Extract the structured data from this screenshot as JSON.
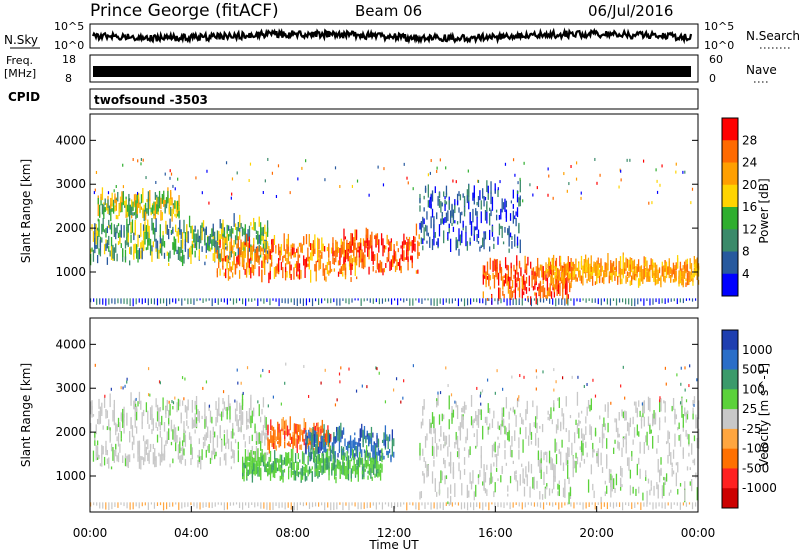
{
  "header": {
    "station": "Prince George (fitACF)",
    "beam": "Beam 06",
    "date": "06/Jul/2016"
  },
  "panels": {
    "nsky": {
      "left_label": "N.Sky",
      "right_label": "N.Search",
      "left_top": "10^5",
      "left_bottom": "10^0",
      "right_top": "10^5",
      "right_bottom": "10^0"
    },
    "freq": {
      "left_label_1": "Freq.",
      "left_label_2": "[MHz]",
      "right_label": "Nave",
      "left_top": "18",
      "left_bottom": "8",
      "right_top": "60",
      "right_bottom": "0"
    },
    "cpid": {
      "label": "CPID",
      "value": "twofsound -3503"
    }
  },
  "colorbars": {
    "power": {
      "label": "Power [dB]",
      "ticks": [
        "28",
        "24",
        "20",
        "16",
        "12",
        "8",
        "4"
      ],
      "colors": [
        "#ff0000",
        "#ff6a00",
        "#ff9f00",
        "#ffd400",
        "#2fae2f",
        "#3a8a6a",
        "#27599e",
        "#0000ff"
      ]
    },
    "velocity": {
      "label": "Velocity [m s^-1]",
      "ticks": [
        "1000",
        "500",
        "100",
        "25",
        "-25",
        "-100",
        "-500",
        "-1000"
      ],
      "colors": [
        "#1f3fb0",
        "#2a6ec8",
        "#3b9a6b",
        "#5bd23a",
        "#c8c8c8",
        "#ffa640",
        "#ff7000",
        "#ff2020",
        "#cc0000"
      ]
    }
  },
  "chart_data": [
    {
      "type": "heatmap",
      "title": "",
      "ylabel": "Slant Range [km]",
      "ylim": [
        180,
        4600
      ],
      "yticks": [
        1000,
        2000,
        3000,
        4000
      ],
      "xlabel": "Time UT",
      "xlim": [
        "00:00",
        "24:00"
      ],
      "xticks": [
        "00:00",
        "04:00",
        "08:00",
        "12:00",
        "16:00",
        "20:00",
        "00:00"
      ],
      "colorbar": "Power [dB]",
      "echo_regions": [
        {
          "t0": 0.3,
          "t1": 3.5,
          "r0": 2200,
          "r1": 2600,
          "level": "12-20"
        },
        {
          "t0": 0.0,
          "t1": 7.0,
          "r0": 1200,
          "r1": 2000,
          "level": "8-16"
        },
        {
          "t0": 5.0,
          "t1": 10.5,
          "r0": 800,
          "r1": 1600,
          "level": "16-28"
        },
        {
          "t0": 10.0,
          "t1": 13.0,
          "r0": 900,
          "r1": 1800,
          "level": "20-28"
        },
        {
          "t0": 15.5,
          "t1": 19.0,
          "r0": 300,
          "r1": 1100,
          "level": "20-28"
        },
        {
          "t0": 18.0,
          "t1": 24.0,
          "r0": 700,
          "r1": 1100,
          "level": "16-24"
        },
        {
          "t0": 13.0,
          "t1": 17.0,
          "r0": 1400,
          "r1": 2800,
          "level": "4-12"
        }
      ]
    },
    {
      "type": "heatmap",
      "title": "",
      "ylabel": "Slant Range [km]",
      "ylim": [
        180,
        4600
      ],
      "yticks": [
        1000,
        2000,
        3000,
        4000
      ],
      "xlabel": "Time UT",
      "xlim": [
        "00:00",
        "24:00"
      ],
      "xticks": [
        "00:00",
        "04:00",
        "08:00",
        "12:00",
        "16:00",
        "20:00",
        "00:00"
      ],
      "colorbar": "Velocity [m s^-1]",
      "echo_regions": [
        {
          "t0": 0.0,
          "t1": 7.0,
          "r0": 1200,
          "r1": 2600,
          "level": "-25 to 25"
        },
        {
          "t0": 7.0,
          "t1": 9.5,
          "r0": 1550,
          "r1": 2050,
          "level": "-100 to -500"
        },
        {
          "t0": 8.5,
          "t1": 12.0,
          "r0": 1300,
          "r1": 1900,
          "level": "100 to 1000"
        },
        {
          "t0": 6.0,
          "t1": 11.5,
          "r0": 900,
          "r1": 1350,
          "level": "25 to 100"
        },
        {
          "t0": 13.0,
          "t1": 24.0,
          "r0": 400,
          "r1": 2600,
          "level": "-25 to 25"
        }
      ]
    }
  ]
}
